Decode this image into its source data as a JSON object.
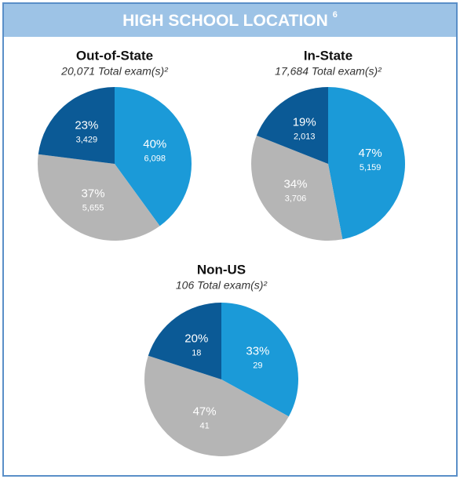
{
  "header": {
    "title": "HIGH SCHOOL LOCATION",
    "note": "6"
  },
  "chart_data": [
    {
      "type": "pie",
      "title": "Out-of-State",
      "subtitle": "20,071 Total exam(s)²",
      "values": [
        40,
        37,
        23
      ],
      "value_labels": [
        "40%",
        "37%",
        "23%"
      ],
      "counts": [
        6098,
        5655,
        3429
      ],
      "count_labels": [
        "6,098",
        "5,655",
        "3,429"
      ],
      "colors": [
        "#1b9ad8",
        "#b5b5b5",
        "#0b5a96"
      ]
    },
    {
      "type": "pie",
      "title": "In-State",
      "subtitle": "17,684 Total exam(s)²",
      "values": [
        47,
        34,
        19
      ],
      "value_labels": [
        "47%",
        "34%",
        "19%"
      ],
      "counts": [
        5159,
        3706,
        2013
      ],
      "count_labels": [
        "5,159",
        "3,706",
        "2,013"
      ],
      "colors": [
        "#1b9ad8",
        "#b5b5b5",
        "#0b5a96"
      ]
    },
    {
      "type": "pie",
      "title": "Non-US",
      "subtitle": "106 Total exam(s)²",
      "values": [
        33,
        47,
        20
      ],
      "value_labels": [
        "33%",
        "47%",
        "20%"
      ],
      "counts": [
        29,
        41,
        18
      ],
      "count_labels": [
        "29",
        "41",
        "18"
      ],
      "colors": [
        "#1b9ad8",
        "#b5b5b5",
        "#0b5a96"
      ]
    }
  ]
}
